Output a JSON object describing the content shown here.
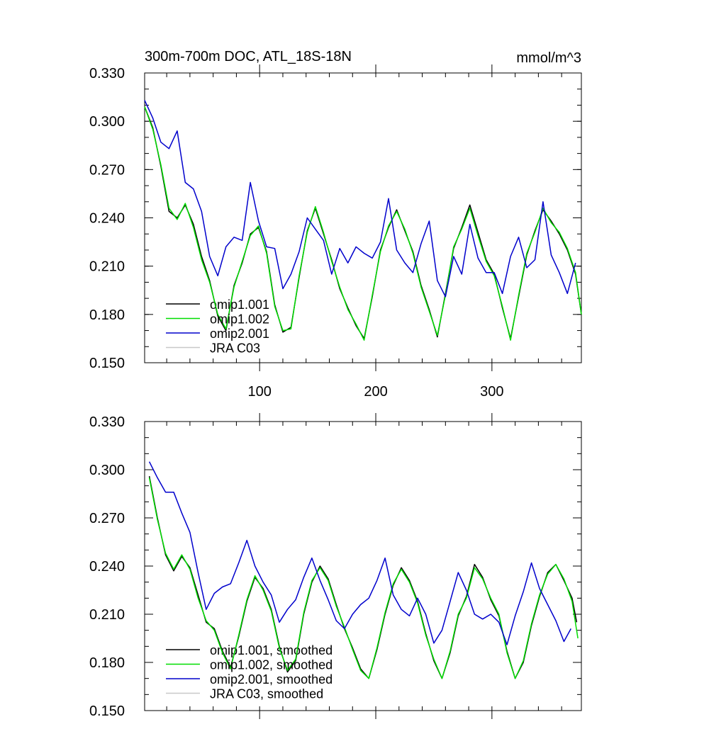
{
  "chart_data": [
    {
      "type": "line",
      "title": "300m-700m DOC, ATL_18S-18N",
      "units": "mmol/m^3",
      "xlim": [
        1,
        377
      ],
      "ylim": [
        0.15,
        0.33
      ],
      "yticks": [
        "0.150",
        "0.180",
        "0.210",
        "0.240",
        "0.270",
        "0.300",
        "0.330"
      ],
      "xticks": [
        "100",
        "200",
        "300"
      ],
      "xtick_values": [
        100,
        200,
        300
      ],
      "series": [
        {
          "name": "omip1.001",
          "color": "#000000",
          "x": [
            1,
            8,
            15,
            22,
            29,
            36,
            43,
            50,
            57,
            64,
            71,
            78,
            85,
            92,
            99,
            106,
            113,
            120,
            127,
            134,
            141,
            148,
            155,
            162,
            169,
            176,
            183,
            190,
            197,
            204,
            211,
            218,
            225,
            232,
            239,
            246,
            253,
            260,
            267,
            274,
            281,
            288,
            295,
            302,
            309,
            316,
            323,
            330,
            337,
            344,
            351,
            358,
            365,
            372,
            377
          ],
          "y": [
            0.309,
            0.296,
            0.272,
            0.244,
            0.24,
            0.248,
            0.236,
            0.216,
            0.201,
            0.179,
            0.17,
            0.198,
            0.212,
            0.23,
            0.234,
            0.219,
            0.186,
            0.169,
            0.172,
            0.203,
            0.232,
            0.246,
            0.23,
            0.214,
            0.196,
            0.184,
            0.173,
            0.165,
            0.191,
            0.22,
            0.234,
            0.245,
            0.232,
            0.219,
            0.198,
            0.183,
            0.166,
            0.193,
            0.221,
            0.234,
            0.248,
            0.231,
            0.214,
            0.205,
            0.184,
            0.165,
            0.191,
            0.217,
            0.232,
            0.245,
            0.238,
            0.23,
            0.22,
            0.205,
            0.18
          ]
        },
        {
          "name": "omip1.002",
          "color": "#00dd00",
          "x": [
            1,
            8,
            15,
            22,
            29,
            36,
            43,
            50,
            57,
            64,
            71,
            78,
            85,
            92,
            99,
            106,
            113,
            120,
            127,
            134,
            141,
            148,
            155,
            162,
            169,
            176,
            183,
            190,
            197,
            204,
            211,
            218,
            225,
            232,
            239,
            246,
            253,
            260,
            267,
            274,
            281,
            288,
            295,
            302,
            309,
            316,
            323,
            330,
            337,
            344,
            351,
            358,
            365,
            372,
            377
          ],
          "y": [
            0.309,
            0.295,
            0.273,
            0.246,
            0.239,
            0.249,
            0.234,
            0.214,
            0.2,
            0.18,
            0.171,
            0.197,
            0.213,
            0.229,
            0.235,
            0.218,
            0.185,
            0.17,
            0.171,
            0.204,
            0.231,
            0.247,
            0.231,
            0.213,
            0.197,
            0.183,
            0.174,
            0.164,
            0.192,
            0.219,
            0.235,
            0.244,
            0.233,
            0.218,
            0.197,
            0.182,
            0.167,
            0.192,
            0.222,
            0.233,
            0.246,
            0.229,
            0.213,
            0.204,
            0.185,
            0.164,
            0.192,
            0.218,
            0.231,
            0.246,
            0.237,
            0.231,
            0.221,
            0.206,
            0.18
          ]
        },
        {
          "name": "omip2.001",
          "color": "#0000cc",
          "x": [
            1,
            8,
            15,
            22,
            29,
            36,
            43,
            50,
            57,
            64,
            71,
            78,
            85,
            92,
            99,
            106,
            113,
            120,
            127,
            134,
            141,
            148,
            155,
            162,
            169,
            176,
            183,
            190,
            197,
            204,
            211,
            218,
            225,
            232,
            239,
            246,
            253,
            260,
            267,
            274,
            281,
            288,
            295,
            302,
            309,
            316,
            323,
            330,
            337,
            344,
            351,
            358,
            365,
            372
          ],
          "y": [
            0.313,
            0.302,
            0.287,
            0.283,
            0.294,
            0.262,
            0.258,
            0.244,
            0.216,
            0.204,
            0.222,
            0.228,
            0.226,
            0.262,
            0.238,
            0.222,
            0.221,
            0.196,
            0.205,
            0.219,
            0.24,
            0.233,
            0.226,
            0.205,
            0.221,
            0.212,
            0.222,
            0.218,
            0.215,
            0.225,
            0.252,
            0.22,
            0.212,
            0.206,
            0.224,
            0.238,
            0.201,
            0.191,
            0.216,
            0.205,
            0.236,
            0.215,
            0.206,
            0.206,
            0.193,
            0.216,
            0.228,
            0.209,
            0.214,
            0.25,
            0.217,
            0.206,
            0.193,
            0.212
          ]
        },
        {
          "name": "JRA C03",
          "color": "#c8c8c8",
          "x": [],
          "y": []
        }
      ]
    },
    {
      "type": "line",
      "title": "",
      "xlim": [
        1,
        377
      ],
      "ylim": [
        0.15,
        0.33
      ],
      "yticks": [
        "0.150",
        "0.180",
        "0.210",
        "0.240",
        "0.270",
        "0.300",
        "0.330"
      ],
      "xticks": [],
      "xtick_values": [
        100,
        200,
        300
      ],
      "series": [
        {
          "name": "omip1.001, smoothed",
          "color": "#000000",
          "x": [
            5,
            12,
            19,
            26,
            33,
            40,
            47,
            54,
            61,
            68,
            75,
            82,
            89,
            96,
            103,
            110,
            117,
            124,
            131,
            138,
            145,
            152,
            159,
            166,
            173,
            180,
            187,
            194,
            201,
            208,
            215,
            222,
            229,
            236,
            243,
            250,
            257,
            264,
            271,
            278,
            285,
            292,
            299,
            306,
            313,
            320,
            327,
            334,
            341,
            348,
            355,
            362,
            369,
            373
          ],
          "y": [
            0.296,
            0.27,
            0.247,
            0.237,
            0.246,
            0.239,
            0.222,
            0.205,
            0.201,
            0.187,
            0.177,
            0.196,
            0.218,
            0.233,
            0.226,
            0.213,
            0.19,
            0.174,
            0.181,
            0.21,
            0.23,
            0.24,
            0.232,
            0.216,
            0.201,
            0.189,
            0.176,
            0.17,
            0.188,
            0.21,
            0.228,
            0.239,
            0.231,
            0.218,
            0.198,
            0.181,
            0.17,
            0.186,
            0.209,
            0.221,
            0.241,
            0.233,
            0.219,
            0.209,
            0.187,
            0.17,
            0.18,
            0.203,
            0.221,
            0.236,
            0.241,
            0.231,
            0.22,
            0.205
          ]
        },
        {
          "name": "omip1.002, smoothed",
          "color": "#00dd00",
          "x": [
            5,
            12,
            19,
            26,
            33,
            40,
            47,
            54,
            61,
            68,
            75,
            82,
            89,
            96,
            103,
            110,
            117,
            124,
            131,
            138,
            145,
            152,
            159,
            166,
            173,
            180,
            187,
            194,
            201,
            208,
            215,
            222,
            229,
            236,
            243,
            250,
            257,
            264,
            271,
            278,
            285,
            292,
            299,
            306,
            313,
            320,
            327,
            334,
            341,
            348,
            355,
            362,
            369,
            374
          ],
          "y": [
            0.295,
            0.269,
            0.248,
            0.238,
            0.247,
            0.238,
            0.22,
            0.206,
            0.2,
            0.186,
            0.176,
            0.197,
            0.219,
            0.234,
            0.225,
            0.212,
            0.189,
            0.175,
            0.182,
            0.211,
            0.231,
            0.239,
            0.231,
            0.215,
            0.202,
            0.188,
            0.175,
            0.17,
            0.189,
            0.211,
            0.229,
            0.238,
            0.23,
            0.217,
            0.197,
            0.182,
            0.17,
            0.187,
            0.21,
            0.22,
            0.239,
            0.232,
            0.22,
            0.21,
            0.186,
            0.17,
            0.181,
            0.204,
            0.222,
            0.235,
            0.241,
            0.232,
            0.218,
            0.195
          ]
        },
        {
          "name": "omip2.001, smoothed",
          "color": "#0000cc",
          "x": [
            5,
            12,
            19,
            26,
            33,
            40,
            47,
            54,
            61,
            68,
            75,
            82,
            89,
            96,
            103,
            110,
            117,
            124,
            131,
            138,
            145,
            152,
            159,
            166,
            173,
            180,
            187,
            194,
            201,
            208,
            215,
            222,
            229,
            236,
            243,
            250,
            257,
            264,
            271,
            278,
            285,
            292,
            299,
            306,
            313,
            320,
            327,
            334,
            341,
            348,
            355,
            362,
            368
          ],
          "y": [
            0.305,
            0.295,
            0.286,
            0.286,
            0.273,
            0.261,
            0.236,
            0.213,
            0.223,
            0.227,
            0.229,
            0.242,
            0.256,
            0.24,
            0.23,
            0.222,
            0.205,
            0.213,
            0.219,
            0.233,
            0.245,
            0.231,
            0.219,
            0.206,
            0.201,
            0.21,
            0.216,
            0.22,
            0.231,
            0.245,
            0.222,
            0.213,
            0.209,
            0.22,
            0.21,
            0.192,
            0.2,
            0.218,
            0.236,
            0.225,
            0.21,
            0.207,
            0.21,
            0.205,
            0.191,
            0.209,
            0.224,
            0.242,
            0.226,
            0.216,
            0.206,
            0.193,
            0.201
          ]
        },
        {
          "name": "JRA C03, smoothed",
          "color": "#c8c8c8",
          "x": [],
          "y": []
        }
      ]
    }
  ]
}
